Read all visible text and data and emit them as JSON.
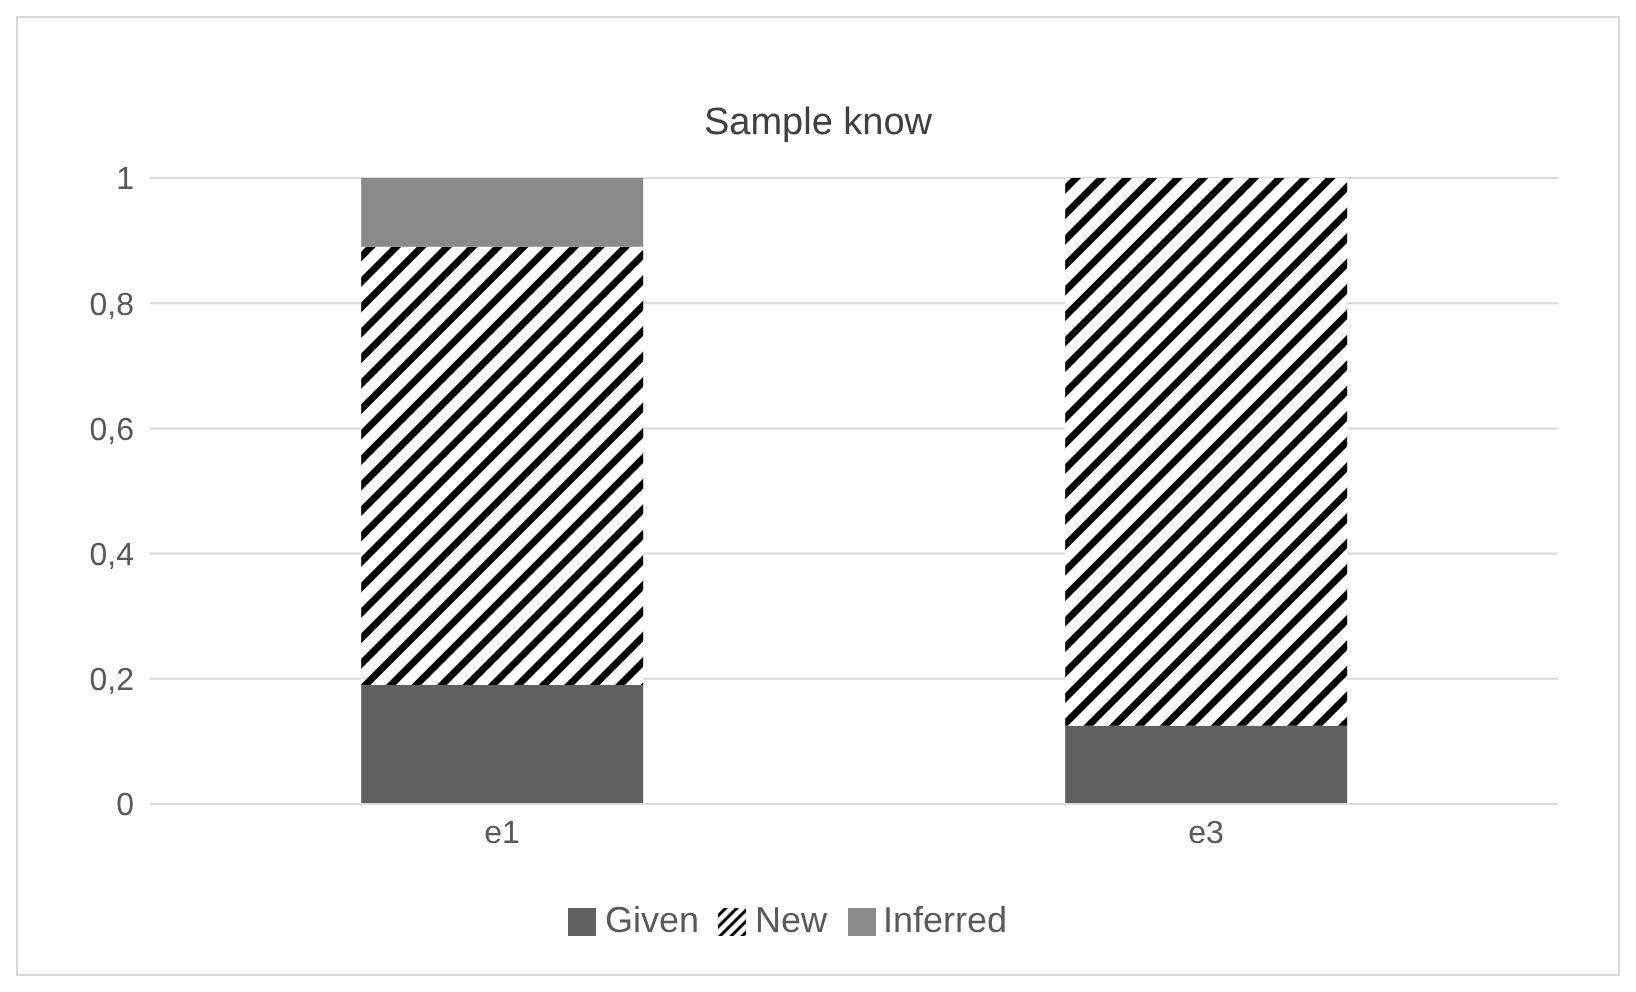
{
  "chart_data": {
    "type": "bar",
    "title": "Sample know",
    "categories": [
      "e1",
      "e3"
    ],
    "stacked": true,
    "series": [
      {
        "name": "Given",
        "color": "#606060",
        "values": [
          0.19,
          0.125
        ]
      },
      {
        "name": "New",
        "color": "#000000",
        "values": [
          0.7,
          0.875
        ]
      },
      {
        "name": "Inferred",
        "color": "#8a8a8a",
        "values": [
          0.11,
          0
        ]
      }
    ],
    "ylim": [
      0,
      1
    ],
    "yticks": [
      0,
      {
        "value": 0.2,
        "label": "0,2"
      },
      {
        "value": 0.4,
        "label": "0,4"
      },
      {
        "value": 0.6,
        "label": "0,6"
      },
      {
        "value": 0.8,
        "label": "0,8"
      },
      1
    ],
    "grid": "y",
    "legend": "bottom"
  }
}
